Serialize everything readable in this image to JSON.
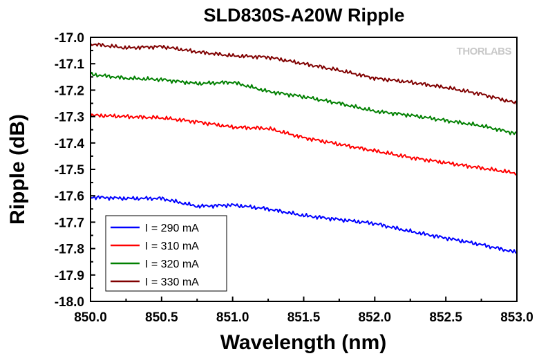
{
  "chart_data": {
    "type": "line",
    "title": "SLD830S-A20W Ripple",
    "xlabel": "Wavelength (nm)",
    "ylabel": "Ripple (dB)",
    "xlim": [
      850.0,
      853.0
    ],
    "ylim": [
      -18.0,
      -17.0
    ],
    "xticks": [
      "850.0",
      "850.5",
      "851.0",
      "851.5",
      "852.0",
      "852.5",
      "853.0"
    ],
    "yticks": [
      "-17.0",
      "-17.1",
      "-17.2",
      "-17.3",
      "-17.4",
      "-17.5",
      "-17.6",
      "-17.7",
      "-17.8",
      "-17.9",
      "-18.0"
    ],
    "grid": false,
    "legend_position": "bottom-left",
    "watermark": "THORLABS",
    "series": [
      {
        "name": "I = 290 mA",
        "color": "#0000ff",
        "x": [
          850.0,
          850.25,
          850.5,
          850.75,
          851.0,
          851.25,
          851.5,
          851.75,
          852.0,
          852.25,
          852.5,
          852.75,
          853.0
        ],
        "y": [
          -17.605,
          -17.61,
          -17.61,
          -17.64,
          -17.635,
          -17.65,
          -17.675,
          -17.69,
          -17.705,
          -17.735,
          -17.76,
          -17.785,
          -17.815
        ]
      },
      {
        "name": "I = 310 mA",
        "color": "#ff0000",
        "x": [
          850.0,
          850.25,
          850.5,
          850.75,
          851.0,
          851.25,
          851.5,
          851.75,
          852.0,
          852.25,
          852.5,
          852.75,
          853.0
        ],
        "y": [
          -17.295,
          -17.3,
          -17.305,
          -17.32,
          -17.34,
          -17.345,
          -17.38,
          -17.405,
          -17.43,
          -17.455,
          -17.475,
          -17.495,
          -17.515
        ]
      },
      {
        "name": "I = 320 mA",
        "color": "#008000",
        "x": [
          850.0,
          850.25,
          850.5,
          850.75,
          851.0,
          851.25,
          851.5,
          851.75,
          852.0,
          852.25,
          852.5,
          852.75,
          853.0
        ],
        "y": [
          -17.14,
          -17.155,
          -17.16,
          -17.175,
          -17.17,
          -17.205,
          -17.225,
          -17.25,
          -17.28,
          -17.295,
          -17.315,
          -17.335,
          -17.365
        ]
      },
      {
        "name": "I = 330 mA",
        "color": "#800000",
        "x": [
          850.0,
          850.25,
          850.5,
          850.75,
          851.0,
          851.25,
          851.5,
          851.75,
          852.0,
          852.25,
          852.5,
          852.75,
          853.0
        ],
        "y": [
          -17.025,
          -17.04,
          -17.035,
          -17.055,
          -17.07,
          -17.075,
          -17.1,
          -17.125,
          -17.155,
          -17.17,
          -17.19,
          -17.215,
          -17.25
        ]
      }
    ]
  }
}
